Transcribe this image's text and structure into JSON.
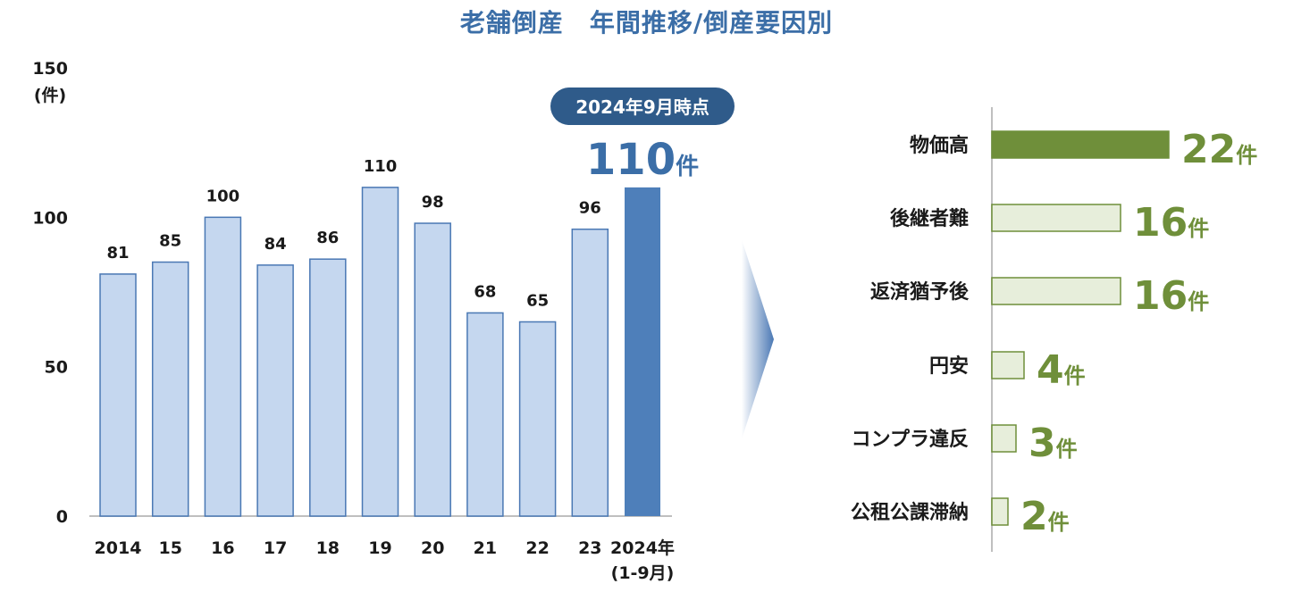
{
  "title": "老舗倒産　年間推移/倒産要因別",
  "colors": {
    "title": "#3b6ea7",
    "bar_fill": "#c5d7ef",
    "bar_stroke": "#4a78b4",
    "bar_highlight": "#4e7fba",
    "callout_bg": "#2f5b8a",
    "highlight_text": "#3b6ea7",
    "h_bar_first": "#6f8f3a",
    "h_bar_fill": "#e7eedb",
    "h_bar_stroke": "#6f8f3a",
    "h_value_text": "#6f8f3a"
  },
  "chart_data": [
    {
      "type": "bar",
      "unit_label": "(件)",
      "y_ticks": [
        "0",
        "50",
        "100",
        "150"
      ],
      "ylim": [
        0,
        150
      ],
      "categories": [
        "2014",
        "15",
        "16",
        "17",
        "18",
        "19",
        "20",
        "21",
        "22",
        "23",
        "2024年"
      ],
      "category_sublabels": [
        "",
        "",
        "",
        "",
        "",
        "",
        "",
        "",
        "",
        "",
        "(1-9月)"
      ],
      "values": [
        81,
        85,
        100,
        84,
        86,
        110,
        98,
        68,
        65,
        96,
        110
      ],
      "data_labels": [
        "81",
        "85",
        "100",
        "84",
        "86",
        "110",
        "98",
        "68",
        "65",
        "96",
        ""
      ],
      "highlight_index": 10,
      "callout": {
        "label": "2024年9月時点",
        "value": "110",
        "unit": "件"
      }
    },
    {
      "type": "bar",
      "orientation": "horizontal",
      "categories": [
        "物価高",
        "後継者難",
        "返済猶予後",
        "円安",
        "コンプラ違反",
        "公租公課滞納"
      ],
      "values": [
        22,
        16,
        16,
        4,
        3,
        2
      ],
      "value_labels": [
        "22",
        "16",
        "16",
        "4",
        "3",
        "2"
      ],
      "unit": "件"
    }
  ]
}
